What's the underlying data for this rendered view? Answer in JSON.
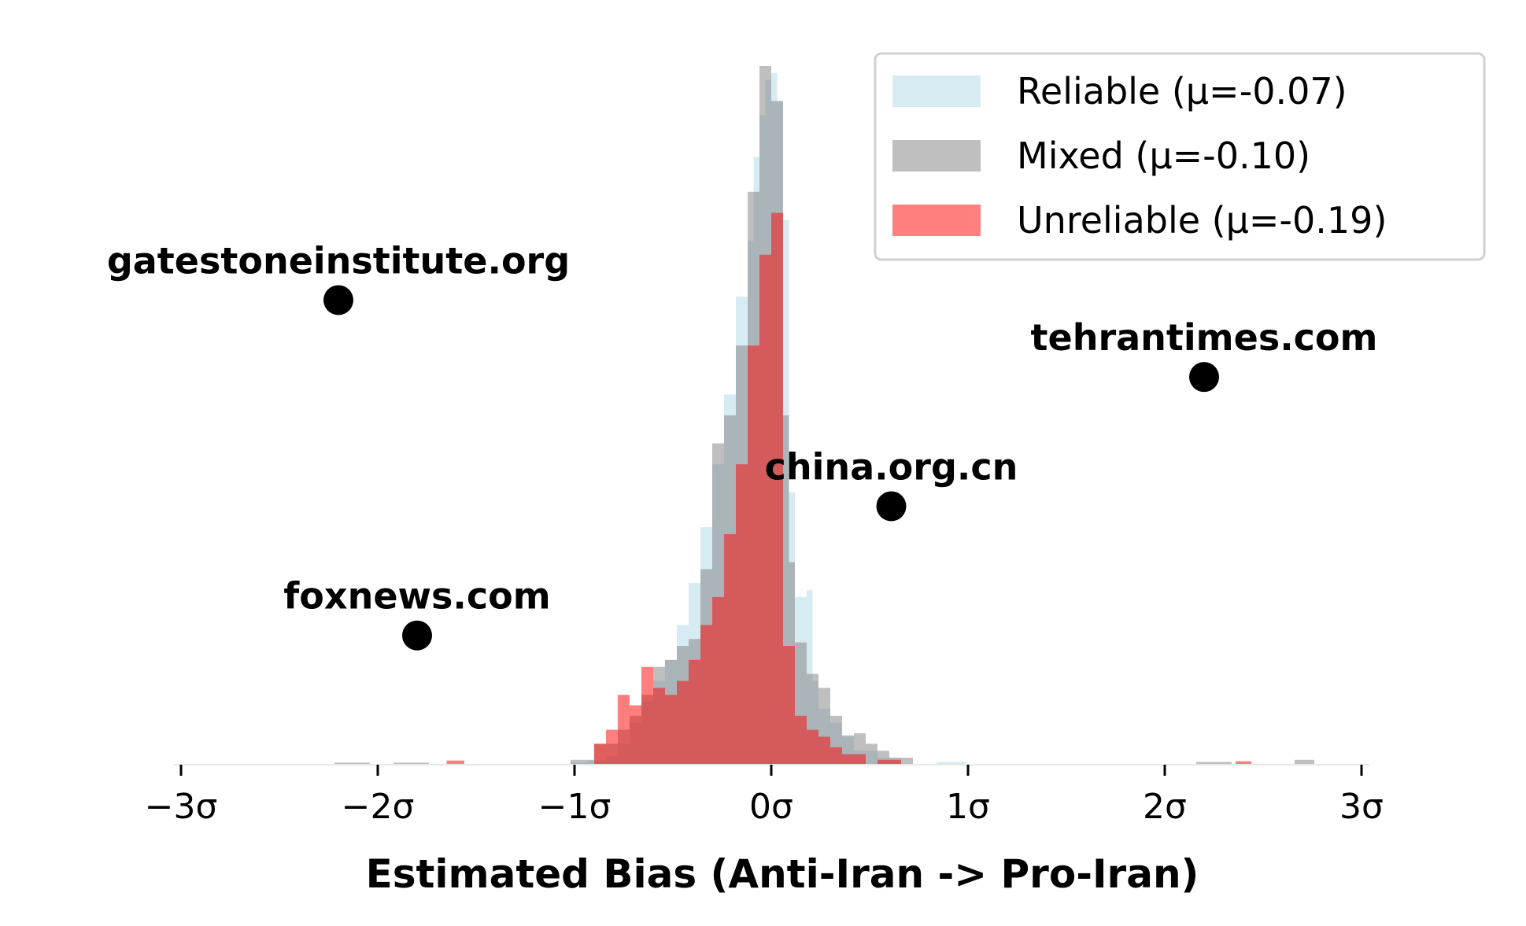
{
  "chart_data": {
    "type": "bar",
    "subtype": "overlaid-histogram",
    "title": "",
    "xlabel": "Estimated Bias (Anti-Iran -> Pro-Iran)",
    "ylabel": "",
    "xlim": [
      -3.0,
      3.0
    ],
    "ylim": [
      0,
      1.0
    ],
    "y_axis_visible": false,
    "grid": false,
    "legend_position": "top-right",
    "x_ticks": [
      {
        "value": -3,
        "label": "−3σ"
      },
      {
        "value": -2,
        "label": "−2σ"
      },
      {
        "value": -1,
        "label": "−1σ"
      },
      {
        "value": 0,
        "label": "0σ"
      },
      {
        "value": 1,
        "label": "1σ"
      },
      {
        "value": 2,
        "label": "2σ"
      },
      {
        "value": 3,
        "label": "3σ"
      }
    ],
    "series": [
      {
        "name": "Reliable (μ=-0.07)",
        "color": "#add8e6",
        "opacity": 0.5,
        "bins": [
          [
            -1.02,
            -0.93,
            0.003
          ],
          [
            -0.93,
            -0.84,
            0.006
          ],
          [
            -0.84,
            -0.78,
            0.012
          ],
          [
            -0.78,
            -0.72,
            0.03
          ],
          [
            -0.72,
            -0.66,
            0.06
          ],
          [
            -0.66,
            -0.6,
            0.09
          ],
          [
            -0.6,
            -0.54,
            0.12
          ],
          [
            -0.54,
            -0.48,
            0.15
          ],
          [
            -0.48,
            -0.42,
            0.2
          ],
          [
            -0.42,
            -0.36,
            0.26
          ],
          [
            -0.36,
            -0.3,
            0.34
          ],
          [
            -0.3,
            -0.24,
            0.43
          ],
          [
            -0.24,
            -0.18,
            0.53
          ],
          [
            -0.18,
            -0.12,
            0.67
          ],
          [
            -0.12,
            -0.09,
            0.75
          ],
          [
            -0.09,
            -0.06,
            0.87
          ],
          [
            -0.06,
            -0.03,
            0.93
          ],
          [
            -0.03,
            0.0,
            0.98
          ],
          [
            0.0,
            0.03,
            0.99
          ],
          [
            0.03,
            0.06,
            0.95
          ],
          [
            0.06,
            0.09,
            0.78
          ],
          [
            0.09,
            0.12,
            0.39
          ],
          [
            0.12,
            0.15,
            0.24
          ],
          [
            0.15,
            0.18,
            0.24
          ],
          [
            0.18,
            0.21,
            0.25
          ],
          [
            0.21,
            0.24,
            0.12
          ],
          [
            0.24,
            0.3,
            0.08
          ],
          [
            0.3,
            0.36,
            0.06
          ],
          [
            0.36,
            0.42,
            0.04
          ],
          [
            0.42,
            0.54,
            0.02
          ],
          [
            0.54,
            0.66,
            0.01
          ],
          [
            0.84,
            0.99,
            0.004
          ]
        ]
      },
      {
        "name": "Mixed (μ=-0.10)",
        "color": "#808080",
        "opacity": 0.5,
        "bins": [
          [
            -2.22,
            -2.04,
            0.003
          ],
          [
            -1.92,
            -1.74,
            0.003
          ],
          [
            -1.02,
            -0.9,
            0.007
          ],
          [
            -0.9,
            -0.78,
            0.03
          ],
          [
            -0.78,
            -0.72,
            0.05
          ],
          [
            -0.72,
            -0.66,
            0.07
          ],
          [
            -0.66,
            -0.6,
            0.1
          ],
          [
            -0.6,
            -0.54,
            0.14
          ],
          [
            -0.54,
            -0.48,
            0.15
          ],
          [
            -0.48,
            -0.42,
            0.17
          ],
          [
            -0.42,
            -0.36,
            0.18
          ],
          [
            -0.36,
            -0.3,
            0.28
          ],
          [
            -0.3,
            -0.24,
            0.46
          ],
          [
            -0.24,
            -0.18,
            0.5
          ],
          [
            -0.18,
            -0.12,
            0.6
          ],
          [
            -0.12,
            -0.06,
            0.82
          ],
          [
            -0.06,
            0.0,
            1.0
          ],
          [
            0.0,
            0.06,
            0.95
          ],
          [
            0.06,
            0.09,
            0.5
          ],
          [
            0.09,
            0.12,
            0.29
          ],
          [
            0.12,
            0.18,
            0.175
          ],
          [
            0.18,
            0.24,
            0.13
          ],
          [
            0.24,
            0.3,
            0.11
          ],
          [
            0.3,
            0.36,
            0.07
          ],
          [
            0.36,
            0.42,
            0.042
          ],
          [
            0.42,
            0.48,
            0.045
          ],
          [
            0.48,
            0.54,
            0.03
          ],
          [
            0.54,
            0.6,
            0.02
          ],
          [
            0.6,
            0.72,
            0.01
          ],
          [
            2.16,
            2.34,
            0.004
          ],
          [
            2.66,
            2.76,
            0.007
          ]
        ]
      },
      {
        "name": "Unreliable (μ=-0.19)",
        "color": "#ff0000",
        "opacity": 0.5,
        "bins": [
          [
            -1.65,
            -1.56,
            0.006
          ],
          [
            -0.9,
            -0.84,
            0.03
          ],
          [
            -0.84,
            -0.78,
            0.05
          ],
          [
            -0.78,
            -0.72,
            0.1
          ],
          [
            -0.72,
            -0.66,
            0.085
          ],
          [
            -0.66,
            -0.6,
            0.14
          ],
          [
            -0.6,
            -0.54,
            0.11
          ],
          [
            -0.54,
            -0.48,
            0.1
          ],
          [
            -0.48,
            -0.42,
            0.12
          ],
          [
            -0.42,
            -0.36,
            0.15
          ],
          [
            -0.36,
            -0.3,
            0.2
          ],
          [
            -0.3,
            -0.24,
            0.24
          ],
          [
            -0.24,
            -0.18,
            0.33
          ],
          [
            -0.18,
            -0.12,
            0.43
          ],
          [
            -0.12,
            -0.06,
            0.6
          ],
          [
            -0.06,
            0.0,
            0.73
          ],
          [
            0.0,
            0.06,
            0.79
          ],
          [
            0.06,
            0.12,
            0.17
          ],
          [
            0.12,
            0.18,
            0.07
          ],
          [
            0.18,
            0.24,
            0.05
          ],
          [
            0.24,
            0.3,
            0.04
          ],
          [
            0.3,
            0.36,
            0.025
          ],
          [
            0.36,
            0.48,
            0.015
          ],
          [
            0.54,
            0.66,
            0.007
          ],
          [
            2.36,
            2.44,
            0.005
          ]
        ]
      }
    ],
    "annotations": [
      {
        "label": "gatestoneinstitute.org",
        "x": -2.2,
        "y": 0.665
      },
      {
        "label": "tehrantimes.com",
        "x": 2.2,
        "y": 0.555
      },
      {
        "label": "china.org.cn",
        "x": 0.61,
        "y": 0.37
      },
      {
        "label": "foxnews.com",
        "x": -1.8,
        "y": 0.185
      }
    ]
  }
}
